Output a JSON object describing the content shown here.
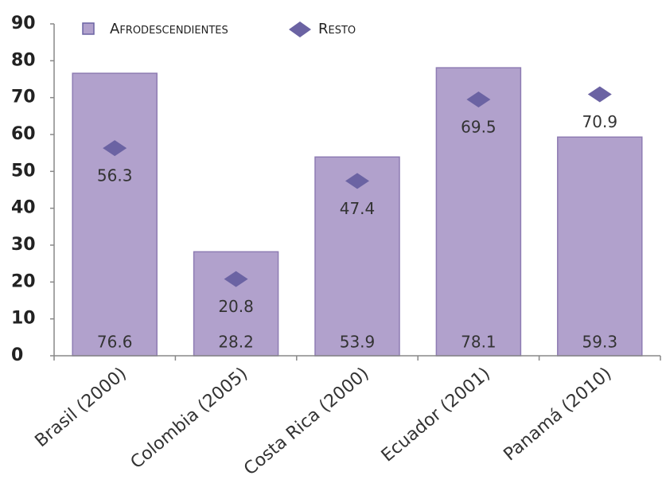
{
  "chart_data": {
    "type": "bar",
    "categories": [
      "Brasil (2000)",
      "Colombia (2005)",
      "Costa Rica (2000)",
      "Ecuador (2001)",
      "Panamá (2010)"
    ],
    "series": [
      {
        "name": "Afrodescendientes",
        "color": "#b1a1cc",
        "values": [
          76.6,
          28.2,
          53.9,
          78.1,
          59.3
        ]
      },
      {
        "name": "Resto",
        "color": "#6b63a3",
        "marker": "diamond",
        "values": [
          56.3,
          20.8,
          47.4,
          69.5,
          70.9
        ]
      }
    ],
    "ylim": [
      0,
      90
    ],
    "yticks": [
      0,
      10,
      20,
      30,
      40,
      50,
      60,
      70,
      80,
      90
    ]
  }
}
